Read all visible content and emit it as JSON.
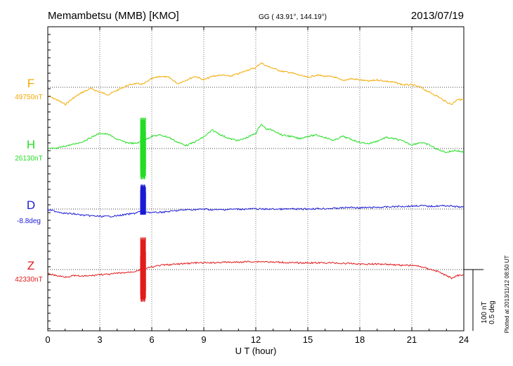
{
  "header": {
    "station": "Memambetsu (MMB)  [KMO]",
    "coords": "GG ( 43.91°, 144.19°)",
    "date": "2013/07/19"
  },
  "plotted_note": "Plotted at 2013/11/12 08:50 UT",
  "scale_note": {
    "line1": "100 nT",
    "line2": "0.5 deg"
  },
  "chart_data": {
    "type": "line",
    "xlabel": "U T (hour)",
    "xlim": [
      0,
      24
    ],
    "xticks": [
      "0",
      "3",
      "6",
      "9",
      "12",
      "15",
      "18",
      "21",
      "24"
    ],
    "grid": true,
    "series": [
      {
        "name": "F",
        "baseline_label": "49750nT",
        "color": "#f2a900",
        "units": "nT",
        "baseline": 49750,
        "points": [
          [
            0,
            49736
          ],
          [
            0.5,
            49730
          ],
          [
            1,
            49722
          ],
          [
            1.5,
            49733
          ],
          [
            2,
            49742
          ],
          [
            2.5,
            49748
          ],
          [
            3,
            49742
          ],
          [
            3.5,
            49738
          ],
          [
            4,
            49745
          ],
          [
            4.5,
            49752
          ],
          [
            5,
            49756
          ],
          [
            5.5,
            49755
          ],
          [
            6,
            49764
          ],
          [
            6.5,
            49768
          ],
          [
            7,
            49766
          ],
          [
            7.5,
            49756
          ],
          [
            8,
            49762
          ],
          [
            8.5,
            49768
          ],
          [
            9,
            49762
          ],
          [
            9.5,
            49768
          ],
          [
            10,
            49770
          ],
          [
            10.5,
            49768
          ],
          [
            11,
            49772
          ],
          [
            11.5,
            49778
          ],
          [
            12,
            49782
          ],
          [
            12.3,
            49790
          ],
          [
            12.6,
            49785
          ],
          [
            13,
            49781
          ],
          [
            13.5,
            49776
          ],
          [
            14,
            49774
          ],
          [
            14.5,
            49770
          ],
          [
            15,
            49766
          ],
          [
            15.5,
            49770
          ],
          [
            16,
            49768
          ],
          [
            16.5,
            49767
          ],
          [
            17,
            49761
          ],
          [
            17.5,
            49764
          ],
          [
            18,
            49762
          ],
          [
            18.5,
            49760
          ],
          [
            19,
            49762
          ],
          [
            19.5,
            49760
          ],
          [
            20,
            49758
          ],
          [
            20.5,
            49754
          ],
          [
            21,
            49754
          ],
          [
            21.5,
            49750
          ],
          [
            22,
            49742
          ],
          [
            22.5,
            49735
          ],
          [
            23,
            49726
          ],
          [
            23.3,
            49722
          ],
          [
            23.6,
            49730
          ],
          [
            24,
            49730
          ]
        ]
      },
      {
        "name": "H",
        "baseline_label": "26130nT",
        "color": "#22dd22",
        "units": "nT",
        "baseline": 26130,
        "points": [
          [
            0,
            26130
          ],
          [
            0.5,
            26130
          ],
          [
            1,
            26134
          ],
          [
            1.5,
            26137
          ],
          [
            2,
            26141
          ],
          [
            2.5,
            26148
          ],
          [
            3,
            26155
          ],
          [
            3.5,
            26153
          ],
          [
            4,
            26145
          ],
          [
            4.5,
            26140
          ],
          [
            5,
            26138
          ],
          [
            5.5,
            26142
          ],
          [
            5.65,
            26145
          ],
          [
            6,
            26150
          ],
          [
            6.5,
            26152
          ],
          [
            7,
            26148
          ],
          [
            7.5,
            26140
          ],
          [
            8,
            26135
          ],
          [
            8.5,
            26141
          ],
          [
            9,
            26149
          ],
          [
            9.5,
            26160
          ],
          [
            10,
            26152
          ],
          [
            10.5,
            26146
          ],
          [
            11,
            26143
          ],
          [
            11.5,
            26148
          ],
          [
            12,
            26155
          ],
          [
            12.3,
            26170
          ],
          [
            12.6,
            26162
          ],
          [
            13,
            26160
          ],
          [
            13.5,
            26152
          ],
          [
            14,
            26150
          ],
          [
            14.5,
            26146
          ],
          [
            15,
            26150
          ],
          [
            15.5,
            26152
          ],
          [
            16,
            26148
          ],
          [
            16.5,
            26143
          ],
          [
            17,
            26150
          ],
          [
            17.5,
            26145
          ],
          [
            18,
            26140
          ],
          [
            18.5,
            26138
          ],
          [
            19,
            26142
          ],
          [
            19.5,
            26148
          ],
          [
            20,
            26146
          ],
          [
            20.5,
            26142
          ],
          [
            21,
            26136
          ],
          [
            21.5,
            26140
          ],
          [
            22,
            26136
          ],
          [
            22.5,
            26128
          ],
          [
            23,
            26124
          ],
          [
            23.5,
            26127
          ],
          [
            24,
            26124
          ]
        ]
      },
      {
        "name": "D",
        "baseline_label": "-8.8deg",
        "color": "#1a1ad6",
        "units": "deg",
        "baseline": -8.8,
        "points": [
          [
            0,
            -8.805
          ],
          [
            0.5,
            -8.82
          ],
          [
            1,
            -8.835
          ],
          [
            1.5,
            -8.84
          ],
          [
            2,
            -8.85
          ],
          [
            2.5,
            -8.855
          ],
          [
            3,
            -8.86
          ],
          [
            3.5,
            -8.86
          ],
          [
            4,
            -8.855
          ],
          [
            4.5,
            -8.845
          ],
          [
            5,
            -8.835
          ],
          [
            5.3,
            -8.82
          ],
          [
            5.6,
            -8.82
          ],
          [
            6,
            -8.83
          ],
          [
            6.5,
            -8.826
          ],
          [
            7,
            -8.82
          ],
          [
            7.5,
            -8.812
          ],
          [
            8,
            -8.805
          ],
          [
            8.5,
            -8.805
          ],
          [
            9,
            -8.8
          ],
          [
            9.5,
            -8.806
          ],
          [
            10,
            -8.805
          ],
          [
            10.5,
            -8.802
          ],
          [
            11,
            -8.801
          ],
          [
            11.5,
            -8.8
          ],
          [
            12,
            -8.798
          ],
          [
            12.5,
            -8.801
          ],
          [
            13,
            -8.8
          ],
          [
            13.5,
            -8.801
          ],
          [
            14,
            -8.799
          ],
          [
            14.5,
            -8.801
          ],
          [
            15,
            -8.799
          ],
          [
            15.5,
            -8.797
          ],
          [
            16,
            -8.796
          ],
          [
            16.5,
            -8.794
          ],
          [
            17,
            -8.79
          ],
          [
            17.5,
            -8.786
          ],
          [
            18,
            -8.79
          ],
          [
            18.5,
            -8.788
          ],
          [
            19,
            -8.786
          ],
          [
            19.5,
            -8.784
          ],
          [
            20,
            -8.78
          ],
          [
            20.5,
            -8.778
          ],
          [
            21,
            -8.776
          ],
          [
            21.5,
            -8.772
          ],
          [
            22,
            -8.778
          ],
          [
            22.5,
            -8.775
          ],
          [
            23,
            -8.772
          ],
          [
            23.5,
            -8.78
          ],
          [
            24,
            -8.785
          ]
        ]
      },
      {
        "name": "Z",
        "baseline_label": "42330nT",
        "color": "#e21a1a",
        "units": "nT",
        "baseline": 42330,
        "points": [
          [
            0,
            42324
          ],
          [
            0.5,
            42320
          ],
          [
            1,
            42318
          ],
          [
            1.5,
            42320
          ],
          [
            2,
            42319
          ],
          [
            2.5,
            42320
          ],
          [
            3,
            42322
          ],
          [
            3.5,
            42322
          ],
          [
            4,
            42324
          ],
          [
            4.5,
            42325
          ],
          [
            5,
            42327
          ],
          [
            5.5,
            42331
          ],
          [
            6,
            42334
          ],
          [
            6.5,
            42337
          ],
          [
            7,
            42338
          ],
          [
            7.5,
            42339
          ],
          [
            8,
            42340
          ],
          [
            8.5,
            42341
          ],
          [
            9,
            42341
          ],
          [
            9.5,
            42341
          ],
          [
            10,
            42342
          ],
          [
            10.5,
            42342
          ],
          [
            11,
            42342
          ],
          [
            11.5,
            42343
          ],
          [
            12,
            42343
          ],
          [
            12.5,
            42343
          ],
          [
            13,
            42342
          ],
          [
            13.5,
            42342
          ],
          [
            14,
            42341
          ],
          [
            14.5,
            42341
          ],
          [
            15,
            42341
          ],
          [
            15.5,
            42341
          ],
          [
            16,
            42341
          ],
          [
            16.5,
            42341
          ],
          [
            17,
            42340
          ],
          [
            17.5,
            42340
          ],
          [
            18,
            42339
          ],
          [
            18.5,
            42339
          ],
          [
            19,
            42339
          ],
          [
            19.5,
            42339
          ],
          [
            20,
            42338
          ],
          [
            20.5,
            42337
          ],
          [
            21,
            42337
          ],
          [
            21.5,
            42335
          ],
          [
            22,
            42331
          ],
          [
            22.5,
            42327
          ],
          [
            23,
            42320
          ],
          [
            23.3,
            42316
          ],
          [
            23.6,
            42320
          ],
          [
            24,
            42322
          ]
        ]
      }
    ]
  }
}
